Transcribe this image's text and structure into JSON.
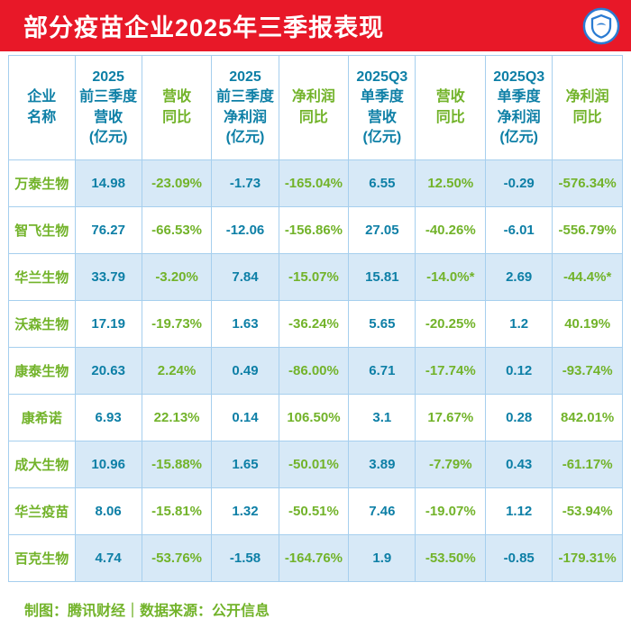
{
  "banner": {
    "title": "部分疫苗企业2025年三季报表现"
  },
  "logo": {
    "icon": "tencent-finance-shield-logo"
  },
  "table": {
    "headers": [
      {
        "id": "company-name",
        "type": "name",
        "lines": [
          "企业",
          "名称"
        ]
      },
      {
        "id": "9m-revenue",
        "type": "metric",
        "lines": [
          "2025",
          "前三季度",
          "营收",
          "(亿元)"
        ]
      },
      {
        "id": "9m-revenue-yoy",
        "type": "yoy",
        "lines": [
          "营收",
          "同比"
        ]
      },
      {
        "id": "9m-net-profit",
        "type": "metric",
        "lines": [
          "2025",
          "前三季度",
          "净利润",
          "(亿元)"
        ]
      },
      {
        "id": "9m-net-profit-yoy",
        "type": "yoy",
        "lines": [
          "净利润",
          "同比"
        ]
      },
      {
        "id": "q3-revenue",
        "type": "metric",
        "lines": [
          "2025Q3",
          "单季度",
          "营收",
          "(亿元)"
        ]
      },
      {
        "id": "q3-revenue-yoy",
        "type": "yoy",
        "lines": [
          "营收",
          "同比"
        ]
      },
      {
        "id": "q3-net-profit",
        "type": "metric",
        "lines": [
          "2025Q3",
          "单季度",
          "净利润",
          "(亿元)"
        ]
      },
      {
        "id": "q3-net-profit-yoy",
        "type": "yoy",
        "lines": [
          "净利润",
          "同比"
        ]
      }
    ],
    "rows": [
      {
        "name": "万泰生物",
        "values": [
          "14.98",
          "-23.09%",
          "-1.73",
          "-165.04%",
          "6.55",
          "12.50%",
          "-0.29",
          "-576.34%"
        ]
      },
      {
        "name": "智飞生物",
        "values": [
          "76.27",
          "-66.53%",
          "-12.06",
          "-156.86%",
          "27.05",
          "-40.26%",
          "-6.01",
          "-556.79%"
        ]
      },
      {
        "name": "华兰生物",
        "values": [
          "33.79",
          "-3.20%",
          "7.84",
          "-15.07%",
          "15.81",
          "-14.0%*",
          "2.69",
          "-44.4%*"
        ]
      },
      {
        "name": "沃森生物",
        "values": [
          "17.19",
          "-19.73%",
          "1.63",
          "-36.24%",
          "5.65",
          "-20.25%",
          "1.2",
          "40.19%"
        ]
      },
      {
        "name": "康泰生物",
        "values": [
          "20.63",
          "2.24%",
          "0.49",
          "-86.00%",
          "6.71",
          "-17.74%",
          "0.12",
          "-93.74%"
        ]
      },
      {
        "name": "康希诺",
        "values": [
          "6.93",
          "22.13%",
          "0.14",
          "106.50%",
          "3.1",
          "17.67%",
          "0.28",
          "842.01%"
        ]
      },
      {
        "name": "成大生物",
        "values": [
          "10.96",
          "-15.88%",
          "1.65",
          "-50.01%",
          "3.89",
          "-7.79%",
          "0.43",
          "-61.17%"
        ]
      },
      {
        "name": "华兰疫苗",
        "values": [
          "8.06",
          "-15.81%",
          "1.32",
          "-50.51%",
          "7.46",
          "-19.07%",
          "1.12",
          "-53.94%"
        ]
      },
      {
        "name": "百克生物",
        "values": [
          "4.74",
          "-53.76%",
          "-1.58",
          "-164.76%",
          "1.9",
          "-53.50%",
          "-0.85",
          "-179.31%"
        ]
      }
    ]
  },
  "footer": {
    "text": "制图：腾讯财经｜数据来源：公开信息"
  },
  "colors": {
    "banner_red": "#e81828",
    "teal": "#0d7fa6",
    "green": "#72b32a",
    "row_alt_blue": "#d7e9f7",
    "cell_border": "#a6cfee",
    "logo_blue": "#2a7bd2"
  },
  "chart_data": {
    "type": "table",
    "title": "部分疫苗企业2025年三季报表现",
    "columns": [
      "企业名称",
      "2025前三季度营收(亿元)",
      "营收同比",
      "2025前三季度净利润(亿元)",
      "净利润同比",
      "2025Q3单季度营收(亿元)",
      "营收同比",
      "2025Q3单季度净利润(亿元)",
      "净利润同比"
    ],
    "rows": [
      [
        "万泰生物",
        14.98,
        "-23.09%",
        -1.73,
        "-165.04%",
        6.55,
        "12.50%",
        -0.29,
        "-576.34%"
      ],
      [
        "智飞生物",
        76.27,
        "-66.53%",
        -12.06,
        "-156.86%",
        27.05,
        "-40.26%",
        -6.01,
        "-556.79%"
      ],
      [
        "华兰生物",
        33.79,
        "-3.20%",
        7.84,
        "-15.07%",
        15.81,
        "-14.0%*",
        2.69,
        "-44.4%*"
      ],
      [
        "沃森生物",
        17.19,
        "-19.73%",
        1.63,
        "-36.24%",
        5.65,
        "-20.25%",
        1.2,
        "40.19%"
      ],
      [
        "康泰生物",
        20.63,
        "2.24%",
        0.49,
        "-86.00%",
        6.71,
        "-17.74%",
        0.12,
        "-93.74%"
      ],
      [
        "康希诺",
        6.93,
        "22.13%",
        0.14,
        "106.50%",
        3.1,
        "17.67%",
        0.28,
        "842.01%"
      ],
      [
        "成大生物",
        10.96,
        "-15.88%",
        1.65,
        "-50.01%",
        3.89,
        "-7.79%",
        0.43,
        "-61.17%"
      ],
      [
        "华兰疫苗",
        8.06,
        "-15.81%",
        1.32,
        "-50.51%",
        7.46,
        "-19.07%",
        1.12,
        "-53.94%"
      ],
      [
        "百克生物",
        4.74,
        "-53.76%",
        -1.58,
        "-164.76%",
        1.9,
        "-53.50%",
        -0.85,
        "-179.31%"
      ]
    ],
    "source": "制图：腾讯财经｜数据来源：公开信息",
    "layout": {
      "grid": true,
      "alternating_row_fill": "light-blue on odd data rows, company-name column stays white"
    }
  }
}
